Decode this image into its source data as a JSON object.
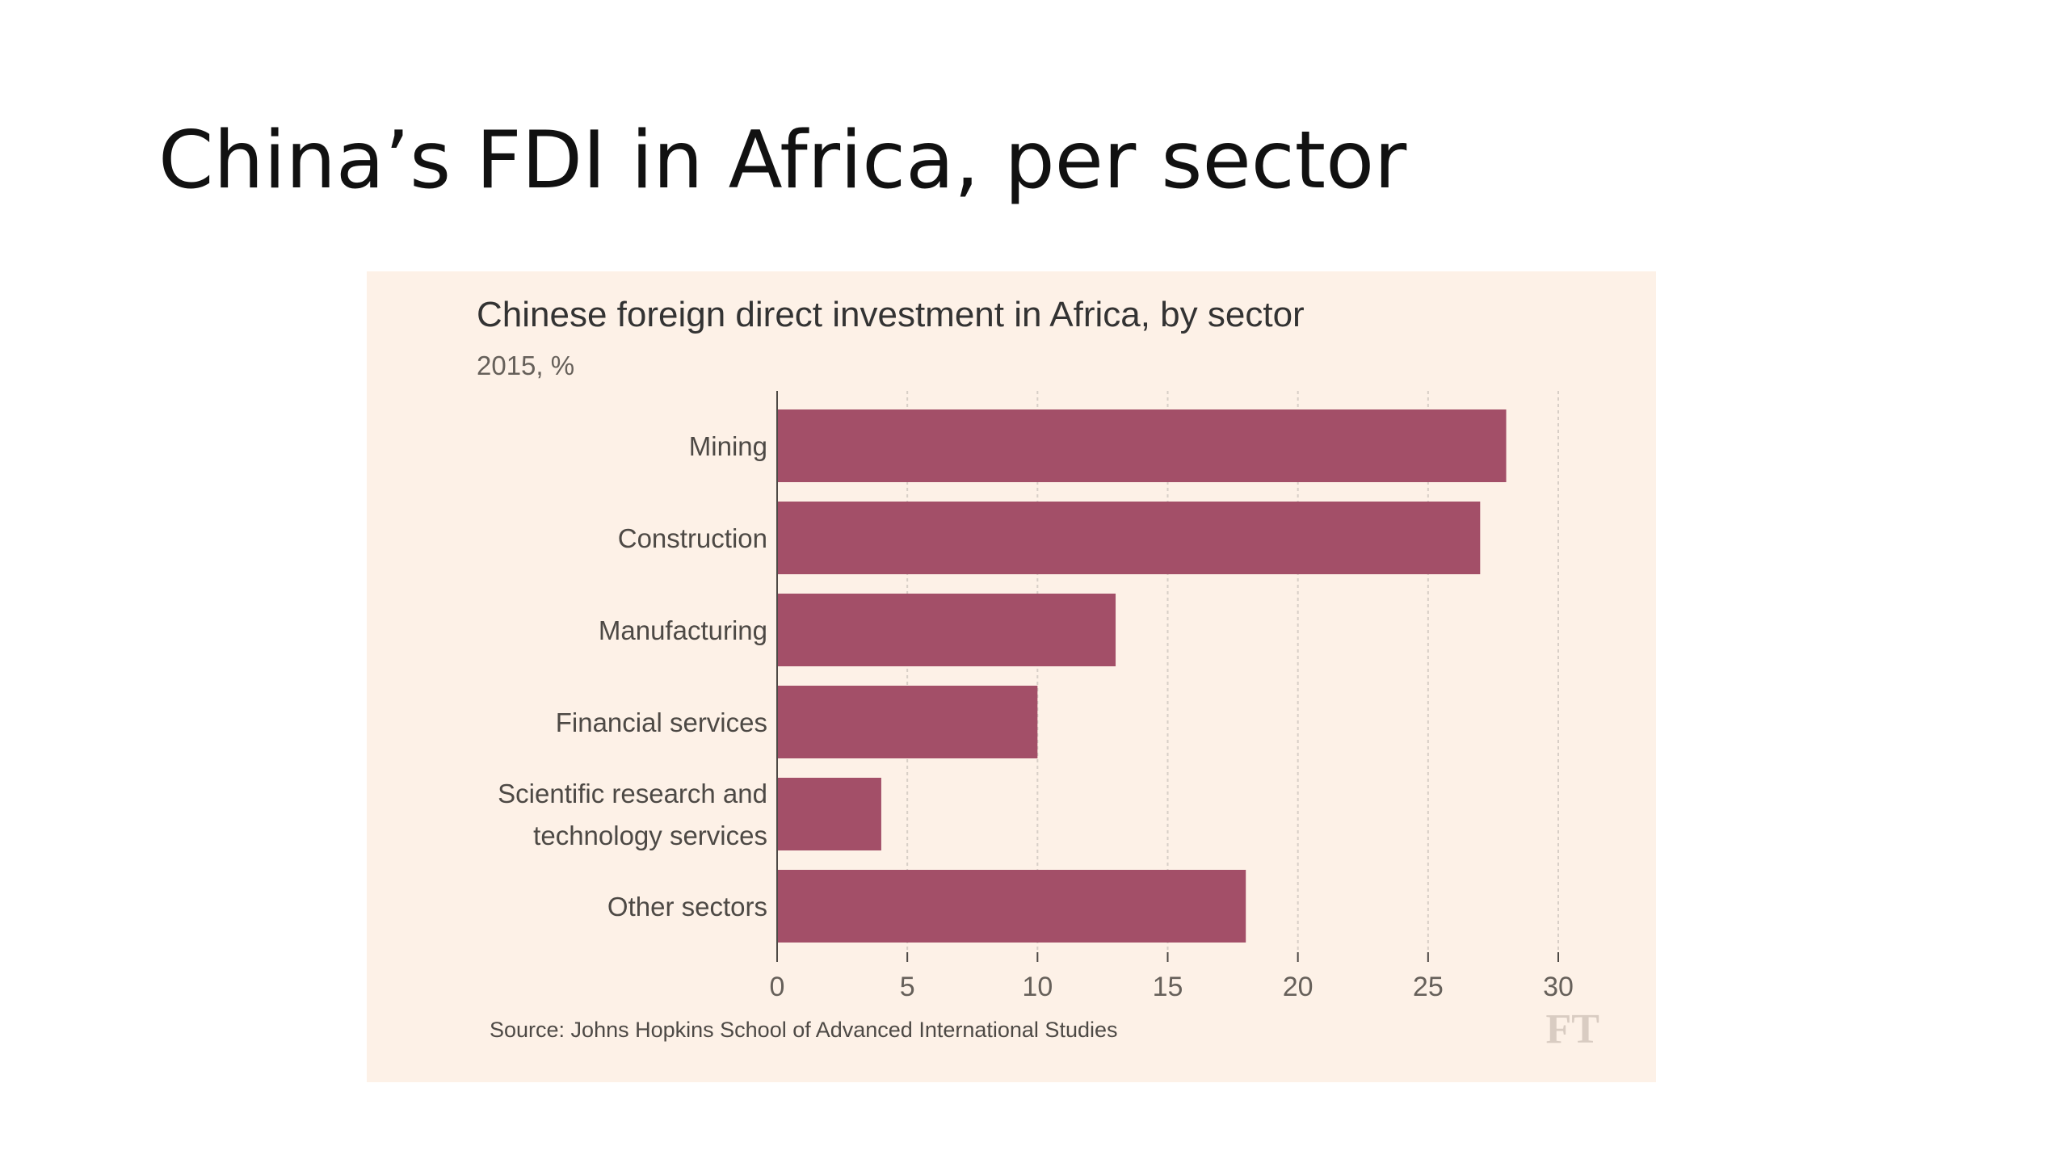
{
  "slide": {
    "title": "China’s FDI in Africa, per sector"
  },
  "chart_data": {
    "type": "bar",
    "orientation": "horizontal",
    "title": "Chinese foreign direct investment in Africa, by sector",
    "subtitle": "2015, %",
    "categories": [
      [
        "Mining"
      ],
      [
        "Construction"
      ],
      [
        "Manufacturing"
      ],
      [
        "Financial services"
      ],
      [
        "Scientific research and",
        "technology services"
      ],
      [
        "Other sectors"
      ]
    ],
    "values": [
      28,
      27,
      13,
      10,
      4,
      18
    ],
    "xlim": [
      0,
      30
    ],
    "xticks": [
      0,
      5,
      10,
      15,
      20,
      25,
      30
    ],
    "grid": true,
    "xlabel": "",
    "ylabel": "",
    "source": "Source: Johns Hopkins School of Advanced International Studies",
    "logo": "FT",
    "colors": {
      "bar": "#a34f68",
      "background": "#fdf1e7",
      "grid": "#d8cfc7",
      "axis": "#4d4945"
    }
  }
}
